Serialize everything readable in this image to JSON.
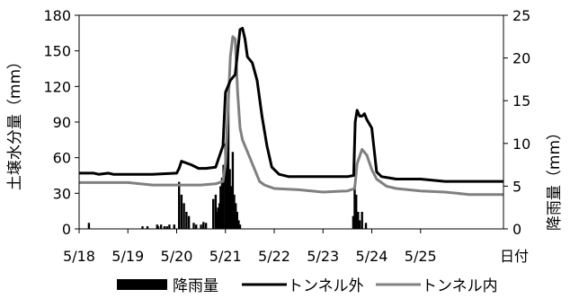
{
  "chart_data": {
    "type": "line",
    "xlabel": "日付",
    "ylabel_left": "土壌水分量（mm）",
    "ylabel_right": "降雨量（mm）",
    "x_ticks": [
      "5/18",
      "5/19",
      "5/20",
      "5/21",
      "5/22",
      "5/23",
      "5/24",
      "5/25"
    ],
    "x_range": [
      0,
      8.7
    ],
    "ylim_left": [
      0,
      180
    ],
    "ylim_right": [
      0,
      25
    ],
    "yticks_left": [
      "0",
      "30",
      "60",
      "90",
      "120",
      "150",
      "180"
    ],
    "yticks_right": [
      "0",
      "5",
      "10",
      "15",
      "20",
      "25"
    ],
    "grid": false,
    "legend_position": "bottom",
    "series": [
      {
        "name": "トンネル外",
        "axis": "left",
        "color": "#000000",
        "x": [
          0,
          0.3,
          0.4,
          0.6,
          0.7,
          1.0,
          1.5,
          2.0,
          2.05,
          2.1,
          2.3,
          2.45,
          2.6,
          2.8,
          2.95,
          3.0,
          3.1,
          3.2,
          3.3,
          3.35,
          3.4,
          3.45,
          3.55,
          3.65,
          3.75,
          3.85,
          3.95,
          4.1,
          4.3,
          5.0,
          5.5,
          5.63,
          5.66,
          5.7,
          5.75,
          5.8,
          5.85,
          5.9,
          6.0,
          6.1,
          6.2,
          6.35,
          6.5,
          7.0,
          7.5,
          8.0,
          8.7
        ],
        "values": [
          47,
          47,
          46,
          47,
          46,
          46,
          46,
          47,
          51,
          57,
          54,
          51,
          51,
          52,
          70,
          115,
          125,
          130,
          168,
          169,
          160,
          145,
          140,
          125,
          95,
          70,
          52,
          46,
          44,
          44,
          44,
          45,
          90,
          100,
          95,
          95,
          97,
          92,
          85,
          48,
          44,
          43,
          42,
          42,
          40,
          40,
          40
        ]
      },
      {
        "name": "トンネル内",
        "axis": "left",
        "color": "#808080",
        "x": [
          0,
          1.0,
          1.5,
          2.0,
          2.5,
          2.8,
          2.95,
          3.0,
          3.05,
          3.1,
          3.15,
          3.2,
          3.25,
          3.3,
          3.35,
          3.45,
          3.55,
          3.7,
          3.8,
          4.0,
          4.5,
          5.0,
          5.5,
          5.65,
          5.7,
          5.8,
          5.9,
          6.0,
          6.1,
          6.3,
          6.5,
          7.0,
          7.5,
          8.0,
          8.7
        ],
        "values": [
          39,
          39,
          37,
          37,
          37,
          38,
          40,
          55,
          100,
          145,
          162,
          160,
          115,
          85,
          75,
          65,
          55,
          40,
          37,
          34,
          33,
          31,
          32,
          34,
          55,
          67,
          62,
          50,
          42,
          36,
          34,
          32,
          31,
          29,
          29
        ]
      }
    ],
    "bars": {
      "name": "降雨量",
      "axis": "right",
      "color": "#000000",
      "x": [
        0.2,
        1.3,
        1.4,
        1.6,
        1.62,
        1.68,
        1.75,
        1.8,
        1.85,
        1.95,
        2.05,
        2.1,
        2.15,
        2.2,
        2.25,
        2.35,
        2.4,
        2.5,
        2.55,
        2.6,
        2.75,
        2.8,
        2.82,
        2.85,
        2.88,
        2.9,
        2.93,
        2.96,
        3.0,
        3.03,
        3.06,
        3.09,
        3.12,
        3.15,
        3.18,
        3.21,
        3.24,
        3.27,
        3.3,
        5.62,
        5.65,
        5.68,
        5.72,
        5.75,
        5.8,
        5.88
      ],
      "values": [
        0.7,
        0.3,
        0.3,
        0.5,
        0.3,
        0.5,
        0.3,
        0.3,
        0.5,
        0.5,
        5.5,
        4.0,
        3.0,
        2.0,
        1.5,
        0.7,
        0.5,
        0.5,
        0.8,
        0.7,
        3.5,
        4.0,
        2.0,
        2.5,
        3.0,
        5.0,
        6.0,
        7.5,
        10.0,
        12.0,
        15.5,
        7.0,
        5.0,
        9.0,
        4.0,
        3.0,
        2.0,
        1.0,
        0.5,
        1.5,
        5.0,
        4.0,
        2.0,
        1.0,
        2.0,
        0.7
      ]
    }
  }
}
